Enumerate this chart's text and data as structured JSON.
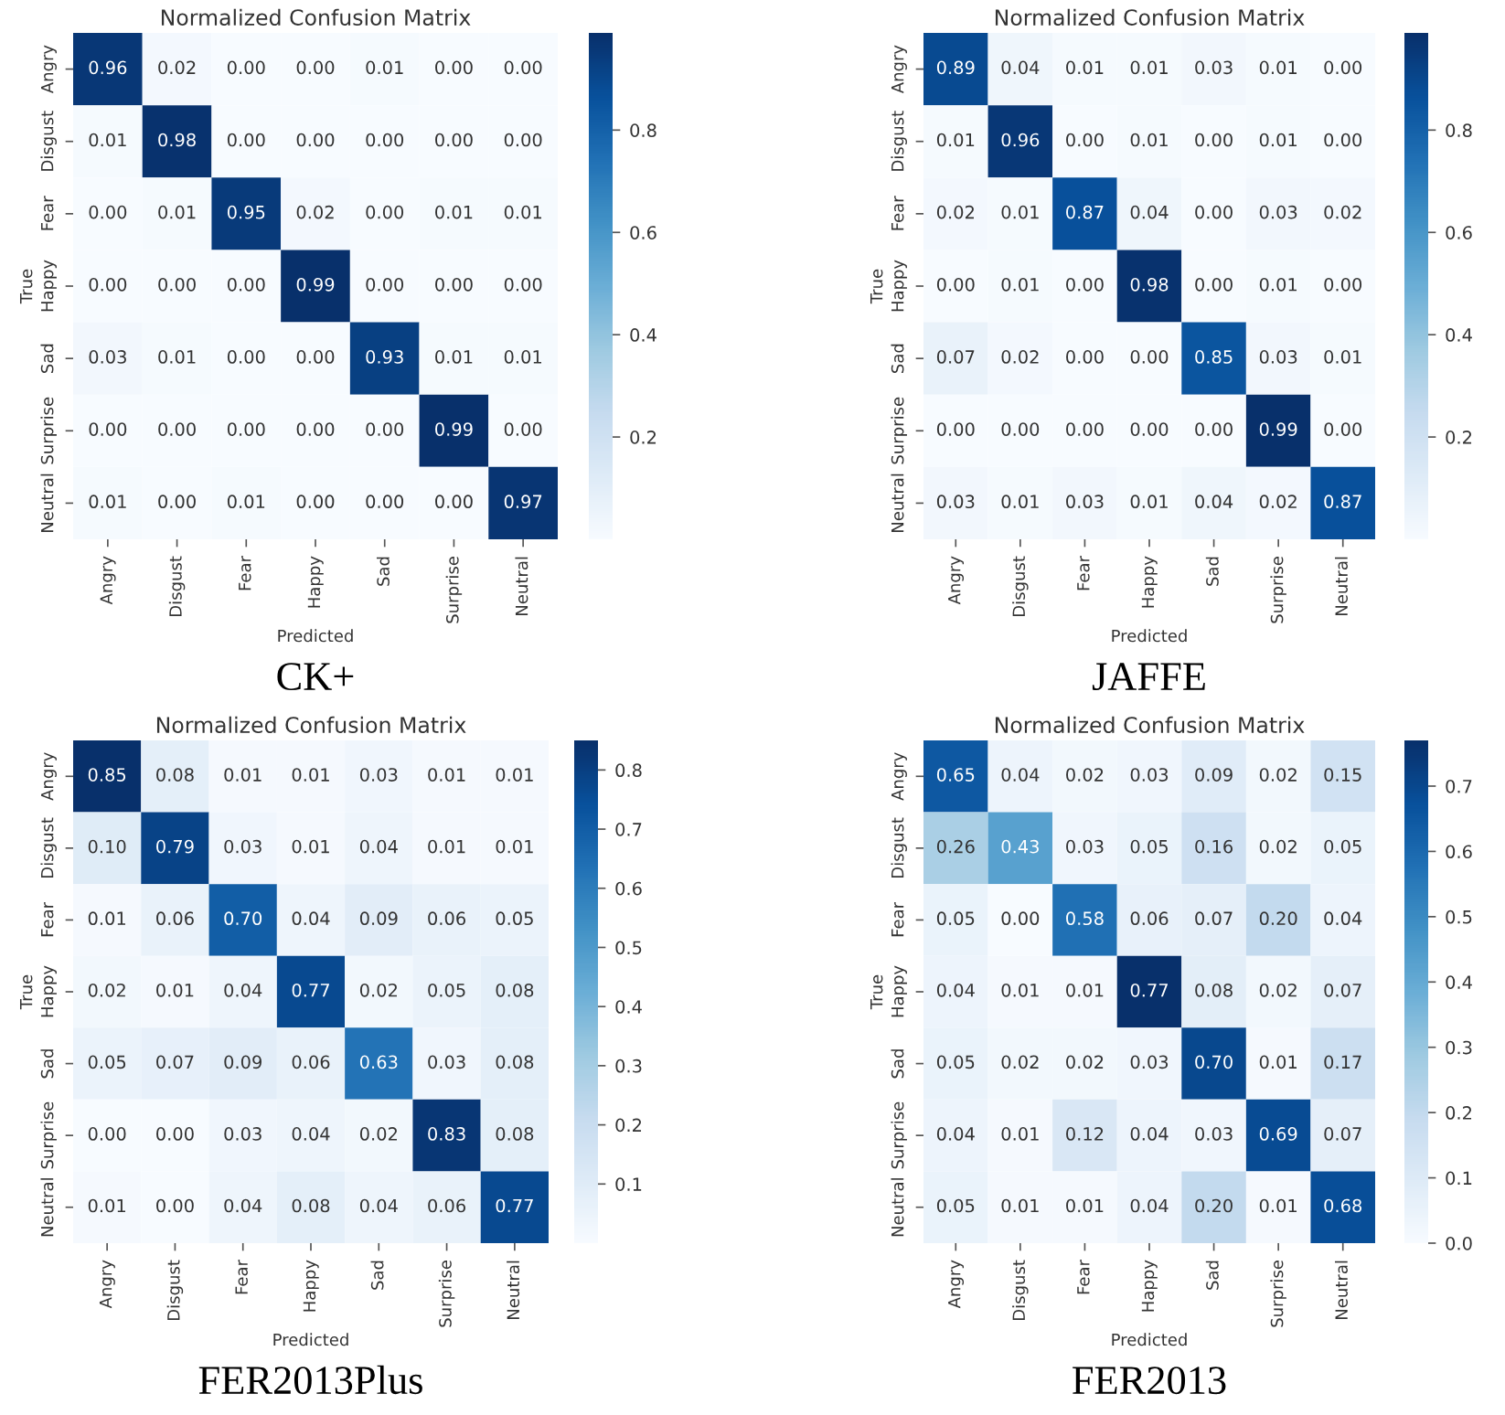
{
  "chart_data": [
    {
      "type": "heatmap",
      "title": "Normalized Confusion Matrix",
      "xlabel": "Predicted",
      "ylabel": "True",
      "annotations": [
        "CK+"
      ],
      "clim": [
        0,
        0.99
      ],
      "cticks": [
        0.2,
        0.4,
        0.6,
        0.8
      ],
      "categories": [
        "Angry",
        "Disgust",
        "Fear",
        "Happy",
        "Sad",
        "Surprise",
        "Neutral"
      ],
      "y_categories": [
        "Angry",
        "Disgust",
        "Fear",
        "Happy",
        "Sad",
        "Surprise",
        "Neutral"
      ],
      "cells": [
        [
          0.96,
          0.02,
          0,
          0,
          0.01,
          0,
          0
        ],
        [
          0.01,
          0.98,
          0,
          0,
          0,
          0,
          0
        ],
        [
          0,
          0.01,
          0.95,
          0.02,
          0,
          0.01,
          0.01
        ],
        [
          0,
          0,
          0,
          0.99,
          0,
          0,
          0
        ],
        [
          0.03,
          0.01,
          0,
          0,
          0.93,
          0.01,
          0.01
        ],
        [
          0,
          0,
          0,
          0,
          0,
          0.99,
          0
        ],
        [
          0.01,
          0,
          0.01,
          0,
          0,
          0,
          0.97
        ]
      ],
      "cell_labels": [
        [
          "0.96",
          "0.02",
          "0.00",
          "0.00",
          "0.01",
          "0.00",
          "0.00"
        ],
        [
          "0.01",
          "0.98",
          "0.00",
          "0.00",
          "0.00",
          "0.00",
          "0.00"
        ],
        [
          "0.00",
          "0.01",
          "0.95",
          "0.02",
          "0.00",
          "0.01",
          "0.01"
        ],
        [
          "0.00",
          "0.00",
          "0.00",
          "0.99",
          "0.00",
          "0.00",
          "0.00"
        ],
        [
          "0.03",
          "0.01",
          "0.00",
          "0.00",
          "0.93",
          "0.01",
          "0.01"
        ],
        [
          "0.00",
          "0.00",
          "0.00",
          "0.00",
          "0.00",
          "0.99",
          "0.00"
        ],
        [
          "0.01",
          "0.00",
          "0.01",
          "0.00",
          "0.00",
          "0.00",
          "0.97"
        ]
      ]
    },
    {
      "type": "heatmap",
      "title": "Normalized Confusion Matrix",
      "xlabel": "Predicted",
      "ylabel": "True",
      "annotations": [
        "JAFFE"
      ],
      "clim": [
        0,
        0.99
      ],
      "cticks": [
        0.2,
        0.4,
        0.6,
        0.8
      ],
      "categories": [
        "Angry",
        "Disgust",
        "Fear",
        "Happy",
        "Sad",
        "Surprise",
        "Neutral"
      ],
      "y_categories": [
        "Angry",
        "Disgust",
        "Fear",
        "Happy",
        "Sad",
        "Surprise",
        "Neutral"
      ],
      "cells": [
        [
          0.89,
          0.04,
          0.01,
          0.01,
          0.03,
          0.01,
          0
        ],
        [
          0.01,
          0.96,
          0,
          0.01,
          0,
          0.01,
          0
        ],
        [
          0.02,
          0.01,
          0.87,
          0.04,
          0,
          0.03,
          0.02
        ],
        [
          0,
          0.01,
          0,
          0.98,
          0,
          0.01,
          0
        ],
        [
          0.07,
          0.02,
          0,
          0,
          0.85,
          0.03,
          0.01
        ],
        [
          0,
          0,
          0,
          0,
          0,
          0.99,
          0
        ],
        [
          0.03,
          0.01,
          0.03,
          0.01,
          0.04,
          0.02,
          0.87
        ]
      ],
      "cell_labels": [
        [
          "0.89",
          "0.04",
          "0.01",
          "0.01",
          "0.03",
          "0.01",
          "0.00"
        ],
        [
          "0.01",
          "0.96",
          "0.00",
          "0.01",
          "0.00",
          "0.01",
          "0.00"
        ],
        [
          "0.02",
          "0.01",
          "0.87",
          "0.04",
          "0.00",
          "0.03",
          "0.02"
        ],
        [
          "0.00",
          "0.01",
          "0.00",
          "0.98",
          "0.00",
          "0.01",
          "0.00"
        ],
        [
          "0.07",
          "0.02",
          "0.00",
          "0.00",
          "0.85",
          "0.03",
          "0.01"
        ],
        [
          "0.00",
          "0.00",
          "0.00",
          "0.00",
          "0.00",
          "0.99",
          "0.00"
        ],
        [
          "0.03",
          "0.01",
          "0.03",
          "0.01",
          "0.04",
          "0.02",
          "0.87"
        ]
      ]
    },
    {
      "type": "heatmap",
      "title": "Normalized Confusion Matrix",
      "xlabel": "Predicted",
      "ylabel": "True",
      "annotations": [
        "FER2013Plus"
      ],
      "clim": [
        0,
        0.85
      ],
      "cticks": [
        0.1,
        0.2,
        0.3,
        0.4,
        0.5,
        0.6,
        0.7,
        0.8
      ],
      "categories": [
        "Angry",
        "Disgust",
        "Fear",
        "Happy",
        "Sad",
        "Surprise",
        "Neutral"
      ],
      "y_categories": [
        "Angry",
        "Disgust",
        "Fear",
        "Happy",
        "Sad",
        "Surprise",
        "Neutral"
      ],
      "cells": [
        [
          0.85,
          0.08,
          0.01,
          0.01,
          0.03,
          0.01,
          0.01
        ],
        [
          0.1,
          0.79,
          0.03,
          0.01,
          0.04,
          0.01,
          0.01
        ],
        [
          0.01,
          0.06,
          0.7,
          0.04,
          0.09,
          0.06,
          0.05
        ],
        [
          0.02,
          0.01,
          0.04,
          0.77,
          0.02,
          0.05,
          0.08
        ],
        [
          0.05,
          0.07,
          0.09,
          0.06,
          0.63,
          0.03,
          0.08
        ],
        [
          0,
          0,
          0.03,
          0.04,
          0.02,
          0.83,
          0.08
        ],
        [
          0.01,
          0,
          0.04,
          0.08,
          0.04,
          0.06,
          0.77
        ]
      ],
      "cell_labels": [
        [
          "0.85",
          "0.08",
          "0.01",
          "0.01",
          "0.03",
          "0.01",
          "0.01"
        ],
        [
          "0.10",
          "0.79",
          "0.03",
          "0.01",
          "0.04",
          "0.01",
          "0.01"
        ],
        [
          "0.01",
          "0.06",
          "0.70",
          "0.04",
          "0.09",
          "0.06",
          "0.05"
        ],
        [
          "0.02",
          "0.01",
          "0.04",
          "0.77",
          "0.02",
          "0.05",
          "0.08"
        ],
        [
          "0.05",
          "0.07",
          "0.09",
          "0.06",
          "0.63",
          "0.03",
          "0.08"
        ],
        [
          "0.00",
          "0.00",
          "0.03",
          "0.04",
          "0.02",
          "0.83",
          "0.08"
        ],
        [
          "0.01",
          "0.00",
          "0.04",
          "0.08",
          "0.04",
          "0.06",
          "0.77"
        ]
      ]
    },
    {
      "type": "heatmap",
      "title": "Normalized Confusion Matrix",
      "xlabel": "Predicted",
      "ylabel": "True",
      "annotations": [
        "FER2013"
      ],
      "clim": [
        0,
        0.77
      ],
      "cticks": [
        {
          "value": 0,
          "label": "0.0"
        },
        0.1,
        0.2,
        0.3,
        0.4,
        0.5,
        0.6,
        0.7
      ],
      "categories": [
        "Angry",
        "Disgust",
        "Fear",
        "Happy",
        "Sad",
        "Surprise",
        "Neutral"
      ],
      "y_categories": [
        "Angry",
        "Disgust",
        "Fear",
        "Happy",
        "Sad",
        "Surprise",
        "Neutral"
      ],
      "cells": [
        [
          0.65,
          0.04,
          0.02,
          0.03,
          0.09,
          0.02,
          0.15
        ],
        [
          0.26,
          0.43,
          0.03,
          0.05,
          0.16,
          0.02,
          0.05
        ],
        [
          0.05,
          0,
          0.58,
          0.06,
          0.07,
          0.2,
          0.04
        ],
        [
          0.04,
          0.01,
          0.01,
          0.77,
          0.08,
          0.02,
          0.07
        ],
        [
          0.05,
          0.02,
          0.02,
          0.03,
          0.7,
          0.01,
          0.17
        ],
        [
          0.04,
          0.01,
          0.12,
          0.04,
          0.03,
          0.69,
          0.07
        ],
        [
          0.05,
          0.01,
          0.01,
          0.04,
          0.2,
          0.01,
          0.68
        ]
      ],
      "cell_labels": [
        [
          "0.65",
          "0.04",
          "0.02",
          "0.03",
          "0.09",
          "0.02",
          "0.15"
        ],
        [
          "0.26",
          "0.43",
          "0.03",
          "0.05",
          "0.16",
          "0.02",
          "0.05"
        ],
        [
          "0.05",
          "0.00",
          "0.58",
          "0.06",
          "0.07",
          "0.20",
          "0.04"
        ],
        [
          "0.04",
          "0.01",
          "0.01",
          "0.77",
          "0.08",
          "0.02",
          "0.07"
        ],
        [
          "0.05",
          "0.02",
          "0.02",
          "0.03",
          "0.70",
          "0.01",
          "0.17"
        ],
        [
          "0.04",
          "0.01",
          "0.12",
          "0.04",
          "0.03",
          "0.69",
          "0.07"
        ],
        [
          "0.05",
          "0.01",
          "0.01",
          "0.04",
          "0.20",
          "0.01",
          "0.68"
        ]
      ]
    }
  ]
}
